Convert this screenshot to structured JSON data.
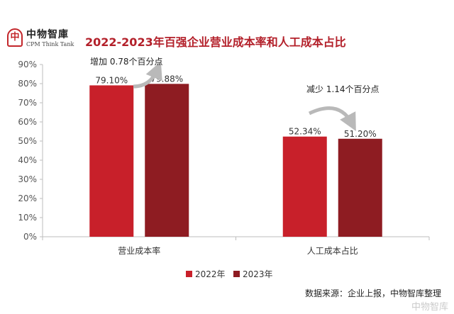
{
  "logo": {
    "name_cn": "中物智庫",
    "name_en": "CPM Think Tank"
  },
  "chart_data": {
    "type": "bar",
    "title": "2022-2023年百强企业营业成本率和人工成本占比",
    "categories": [
      "营业成本率",
      "人工成本占比"
    ],
    "series": [
      {
        "name": "2022年",
        "values": [
          79.1,
          52.34
        ],
        "labels": [
          "79.10%",
          "52.34%"
        ],
        "color": "#c8202a"
      },
      {
        "name": "2023年",
        "values": [
          79.88,
          51.2
        ],
        "labels": [
          "79.88%",
          "51.20%"
        ],
        "color": "#8e1c22"
      }
    ],
    "ylim": [
      0,
      90
    ],
    "yticks": [
      0,
      10,
      20,
      30,
      40,
      50,
      60,
      70,
      80,
      90
    ],
    "ytick_labels": [
      "0%",
      "10%",
      "20%",
      "30%",
      "40%",
      "50%",
      "60%",
      "70%",
      "80%",
      "90%"
    ],
    "legend_position": "bottom",
    "grid": false,
    "annotations": [
      {
        "text": "增加 0.78个百分点",
        "arrow": "up"
      },
      {
        "text": "减少 1.14个百分点",
        "arrow": "down"
      }
    ]
  },
  "source": "数据来源：企业上报，中物智库整理",
  "watermark": "中物智库"
}
